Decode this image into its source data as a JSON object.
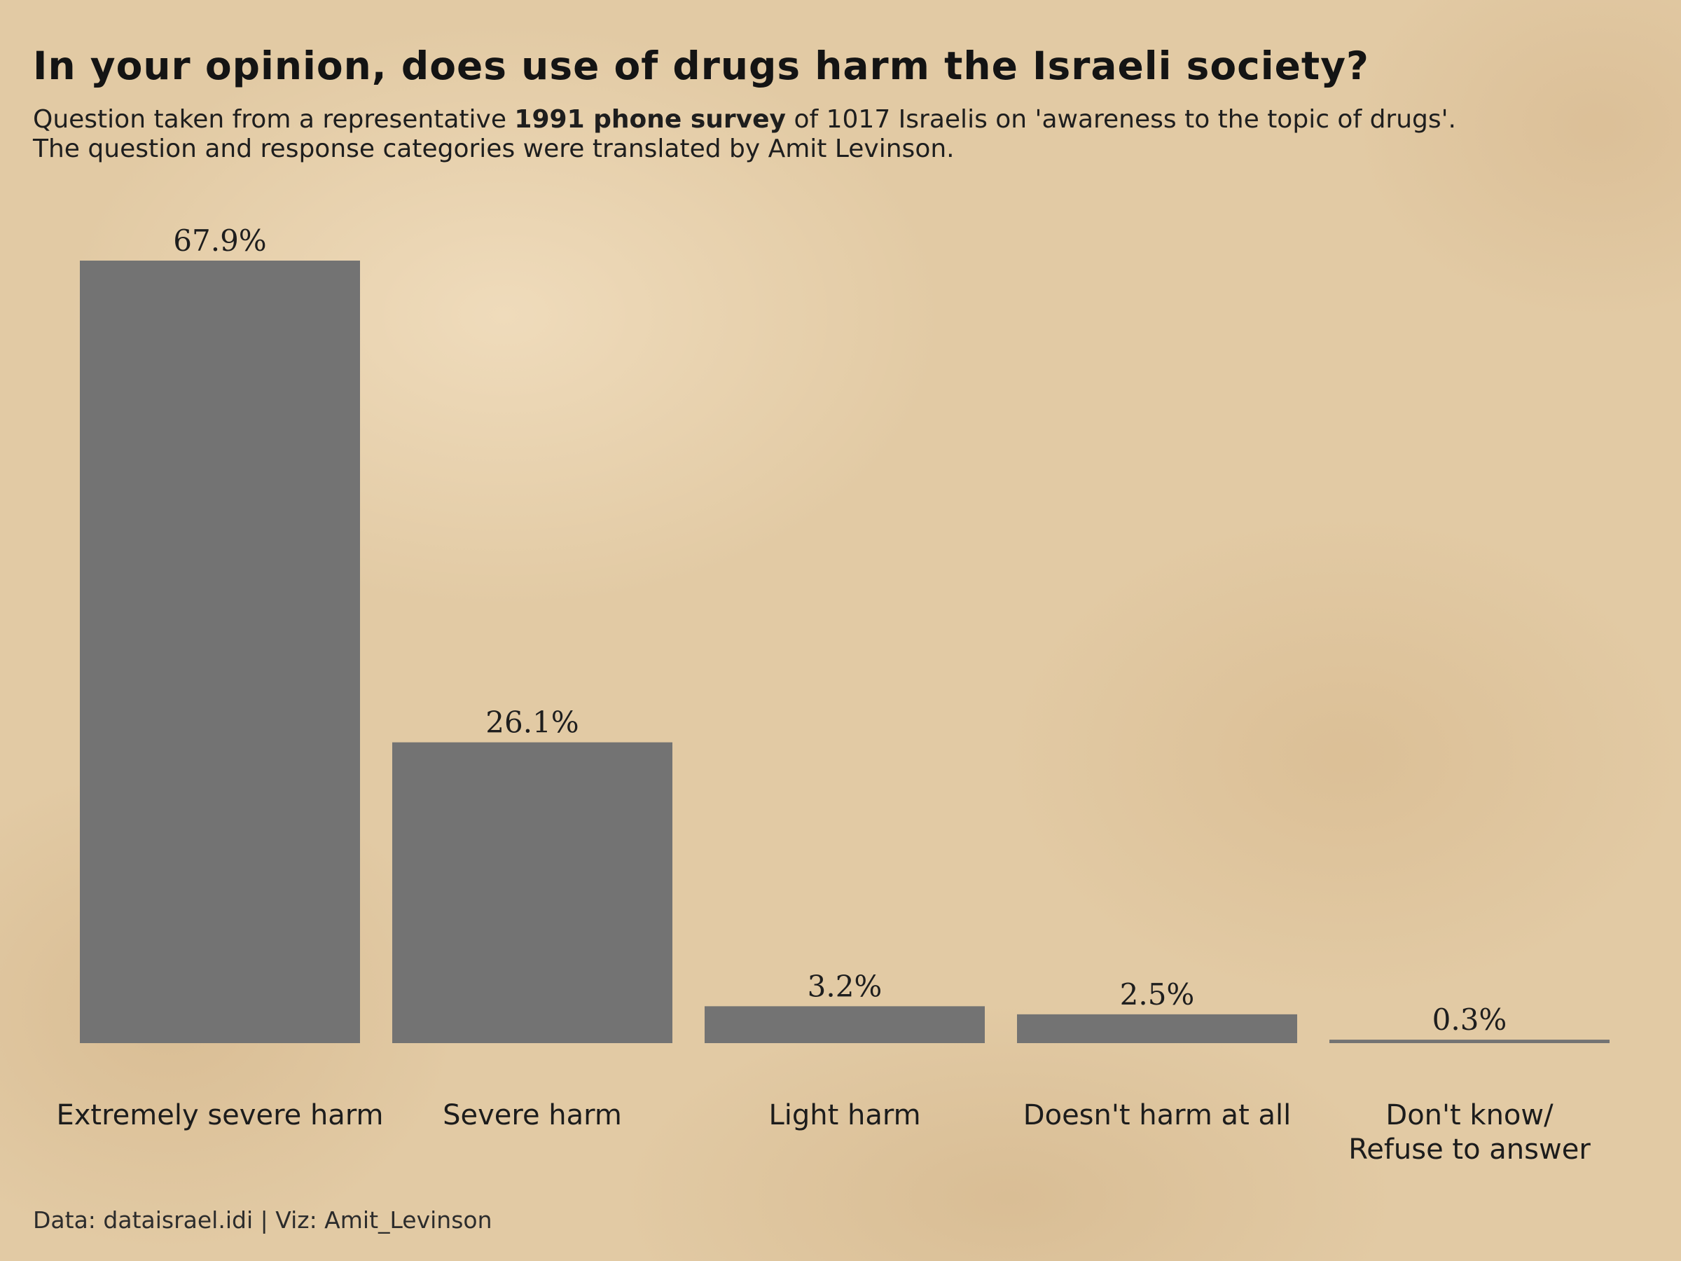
{
  "title": "In your opinion, does use of drugs harm the Israeli society?",
  "subtitle": {
    "line1_before": "Question taken from a representative ",
    "line1_bold": "1991 phone survey",
    "line1_after": " of 1017 Israelis on 'awareness to the topic of drugs'.",
    "line2": "The question and response categories were translated by Amit Levinson."
  },
  "caption": "Data: dataisrael.idi | Viz: Amit_Levinson",
  "colors": {
    "bar": "#737373",
    "background": "#e2caa4"
  },
  "chart_data": {
    "type": "bar",
    "categories": [
      [
        "Extremely severe harm"
      ],
      [
        "Severe harm"
      ],
      [
        "Light harm"
      ],
      [
        "Doesn't harm at all"
      ],
      [
        "Don't know/",
        "Refuse to answer"
      ]
    ],
    "values": [
      67.9,
      26.1,
      3.2,
      2.5,
      0.3
    ],
    "value_labels": [
      "67.9%",
      "26.1%",
      "3.2%",
      "2.5%",
      "0.3%"
    ],
    "ylim": [
      0,
      67.9
    ],
    "grid": false,
    "legend": "none"
  }
}
